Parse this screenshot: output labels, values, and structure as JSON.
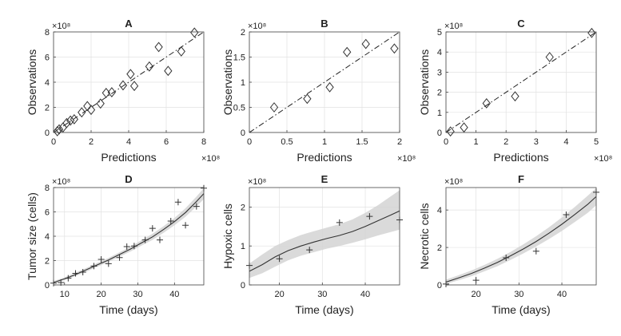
{
  "chart_data": [
    {
      "id": "A",
      "type": "scatter",
      "title": "A",
      "xlabel": "Predictions",
      "ylabel": "Observations",
      "xlim": [
        0,
        8
      ],
      "ylim": [
        0,
        8
      ],
      "xticks": [
        0,
        2,
        4,
        6,
        8
      ],
      "yticks": [
        0,
        2,
        4,
        6,
        8
      ],
      "x_exponent": "×10⁸",
      "y_exponent": "×10⁸",
      "marker": "diamond",
      "reference_line": true,
      "x": [
        0.2,
        0.3,
        0.5,
        0.7,
        0.9,
        1.1,
        1.5,
        1.8,
        2.0,
        2.5,
        2.8,
        3.1,
        3.7,
        4.1,
        4.3,
        5.1,
        5.6,
        6.1,
        6.8,
        7.5
      ],
      "y": [
        0.1,
        0.25,
        0.4,
        0.75,
        0.95,
        1.05,
        1.6,
        2.1,
        1.8,
        2.3,
        3.15,
        3.2,
        3.75,
        4.65,
        3.7,
        5.25,
        6.8,
        4.9,
        6.45,
        7.95
      ]
    },
    {
      "id": "B",
      "type": "scatter",
      "title": "B",
      "xlabel": "Predictions",
      "ylabel": "Observations",
      "xlim": [
        0,
        2
      ],
      "ylim": [
        0,
        2
      ],
      "xticks": [
        0,
        0.5,
        1,
        1.5,
        2
      ],
      "yticks": [
        0,
        0.5,
        1,
        1.5,
        2
      ],
      "x_exponent": "×10⁸",
      "y_exponent": "×10⁸",
      "marker": "diamond",
      "reference_line": true,
      "x": [
        0.33,
        0.77,
        1.07,
        1.3,
        1.55,
        1.93
      ],
      "y": [
        0.5,
        0.67,
        0.9,
        1.6,
        1.76,
        1.67
      ]
    },
    {
      "id": "C",
      "type": "scatter",
      "title": "C",
      "xlabel": "Predictions",
      "ylabel": "Observations",
      "xlim": [
        0,
        5
      ],
      "ylim": [
        0,
        5
      ],
      "xticks": [
        0,
        1,
        2,
        3,
        4,
        5
      ],
      "yticks": [
        0,
        1,
        2,
        3,
        4,
        5
      ],
      "x_exponent": "×10⁸",
      "y_exponent": "×10⁸",
      "marker": "diamond",
      "reference_line": true,
      "x": [
        0.15,
        0.6,
        1.35,
        2.3,
        3.45,
        4.85
      ],
      "y": [
        0.05,
        0.25,
        1.45,
        1.8,
        3.75,
        4.95
      ]
    },
    {
      "id": "D",
      "type": "line",
      "title": "D",
      "xlabel": "Time (days)",
      "ylabel": "Tumor size (cells)",
      "xlim": [
        7,
        48
      ],
      "ylim": [
        0,
        8
      ],
      "xticks": [
        10,
        20,
        30,
        40
      ],
      "yticks": [
        0,
        2,
        4,
        6,
        8
      ],
      "y_exponent": "×10⁸",
      "marker": "plus",
      "x": [
        7,
        9,
        11,
        13,
        15,
        18,
        20,
        22,
        25,
        27,
        29,
        32,
        34,
        36,
        39,
        41,
        43,
        46,
        48
      ],
      "y": [
        0.15,
        0.2,
        0.55,
        0.95,
        1.05,
        1.55,
        2.1,
        1.75,
        2.25,
        3.15,
        3.2,
        3.7,
        4.65,
        3.7,
        5.25,
        6.8,
        4.9,
        6.45,
        7.95
      ],
      "fit": {
        "x": [
          7,
          10,
          13,
          16,
          19,
          22,
          25,
          28,
          31,
          34,
          37,
          40,
          43,
          46,
          48
        ],
        "y": [
          0.2,
          0.5,
          0.85,
          1.25,
          1.65,
          2.05,
          2.5,
          2.95,
          3.45,
          3.95,
          4.55,
          5.2,
          5.95,
          6.85,
          7.5
        ],
        "upper": [
          0.3,
          0.62,
          1.0,
          1.4,
          1.82,
          2.22,
          2.68,
          3.15,
          3.67,
          4.2,
          4.82,
          5.5,
          6.3,
          7.25,
          7.95
        ],
        "lower": [
          0.12,
          0.4,
          0.72,
          1.1,
          1.5,
          1.88,
          2.32,
          2.75,
          3.23,
          3.7,
          4.28,
          4.9,
          5.6,
          6.45,
          7.05
        ]
      }
    },
    {
      "id": "E",
      "type": "line",
      "title": "E",
      "xlabel": "Time (days)",
      "ylabel": "Hypoxic cells",
      "xlim": [
        13,
        48
      ],
      "ylim": [
        0,
        2.5
      ],
      "xticks": [
        20,
        30,
        40
      ],
      "yticks": [
        0,
        1,
        2
      ],
      "y_exponent": "×10⁸",
      "marker": "plus",
      "x": [
        13,
        20,
        27,
        34,
        41,
        48
      ],
      "y": [
        0.5,
        0.67,
        0.9,
        1.6,
        1.76,
        1.67
      ],
      "fit": {
        "x": [
          13,
          16,
          19,
          22,
          25,
          28,
          31,
          34,
          37,
          40,
          43,
          46,
          48
        ],
        "y": [
          0.35,
          0.52,
          0.72,
          0.88,
          1.0,
          1.1,
          1.19,
          1.27,
          1.37,
          1.5,
          1.65,
          1.8,
          1.9
        ],
        "upper": [
          0.55,
          0.78,
          1.0,
          1.15,
          1.28,
          1.38,
          1.47,
          1.56,
          1.68,
          1.85,
          2.05,
          2.28,
          2.43
        ],
        "lower": [
          0.18,
          0.3,
          0.47,
          0.63,
          0.75,
          0.84,
          0.93,
          1.0,
          1.08,
          1.17,
          1.27,
          1.36,
          1.42
        ]
      }
    },
    {
      "id": "F",
      "type": "line",
      "title": "F",
      "xlabel": "Time (days)",
      "ylabel": "Necrotic cells",
      "xlim": [
        13,
        48
      ],
      "ylim": [
        0,
        5.2
      ],
      "xticks": [
        20,
        30,
        40
      ],
      "yticks": [
        0,
        2,
        4
      ],
      "y_exponent": "×10⁸",
      "marker": "plus",
      "x": [
        13,
        20,
        27,
        34,
        41,
        48
      ],
      "y": [
        0.05,
        0.25,
        1.45,
        1.8,
        3.75,
        4.95
      ],
      "fit": {
        "x": [
          13,
          16,
          19,
          22,
          25,
          28,
          31,
          34,
          37,
          40,
          43,
          46,
          48
        ],
        "y": [
          0.15,
          0.38,
          0.62,
          0.9,
          1.2,
          1.55,
          1.92,
          2.32,
          2.76,
          3.24,
          3.76,
          4.3,
          4.72
        ],
        "upper": [
          0.28,
          0.52,
          0.78,
          1.07,
          1.4,
          1.76,
          2.16,
          2.6,
          3.08,
          3.6,
          4.16,
          4.76,
          5.18
        ],
        "lower": [
          0.05,
          0.25,
          0.47,
          0.73,
          1.0,
          1.33,
          1.68,
          2.05,
          2.45,
          2.88,
          3.36,
          3.85,
          4.25
        ]
      }
    }
  ]
}
